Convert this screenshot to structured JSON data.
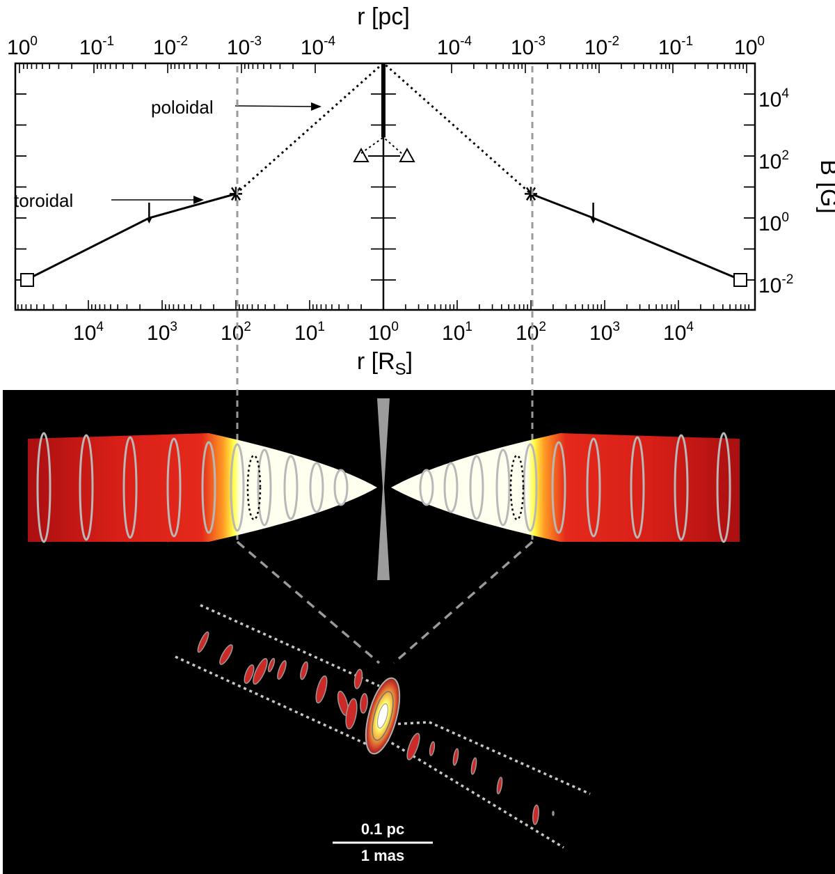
{
  "chart_data": {
    "type": "line",
    "title": "",
    "top_axis": {
      "label": "r [pc]",
      "ticks": [
        {
          "base": "10",
          "exp": "0"
        },
        {
          "base": "10",
          "exp": "-1"
        },
        {
          "base": "10",
          "exp": "-2"
        },
        {
          "base": "10",
          "exp": "-3"
        },
        {
          "base": "10",
          "exp": "-4"
        },
        {
          "base": "10",
          "exp": "-4"
        },
        {
          "base": "10",
          "exp": "-3"
        },
        {
          "base": "10",
          "exp": "-2"
        },
        {
          "base": "10",
          "exp": "-1"
        },
        {
          "base": "10",
          "exp": "0"
        }
      ]
    },
    "bottom_axis": {
      "label_main": "r [R",
      "label_sub": "S",
      "label_end": "]",
      "ticks": [
        {
          "base": "10",
          "exp": "4"
        },
        {
          "base": "10",
          "exp": "3"
        },
        {
          "base": "10",
          "exp": "2"
        },
        {
          "base": "10",
          "exp": "1"
        },
        {
          "base": "10",
          "exp": "0"
        },
        {
          "base": "10",
          "exp": "1"
        },
        {
          "base": "10",
          "exp": "2"
        },
        {
          "base": "10",
          "exp": "3"
        },
        {
          "base": "10",
          "exp": "4"
        }
      ]
    },
    "right_axis": {
      "label": "B [G]",
      "ticks": [
        {
          "base": "10",
          "exp": "4"
        },
        {
          "base": "10",
          "exp": "2"
        },
        {
          "base": "10",
          "exp": "0"
        },
        {
          "base": "10",
          "exp": "-2"
        }
      ]
    },
    "x_scale": "log (mirrored about r = 1 R_S)",
    "y_scale": "log",
    "series": [
      {
        "name": "poloidal",
        "style": "dotted",
        "x_rs": [
          100,
          1,
          100
        ],
        "side": [
          "left",
          "center",
          "right"
        ],
        "y_gauss": [
          6,
          100000,
          6
        ]
      },
      {
        "name": "toroidal",
        "style": "solid",
        "x_rs_left": [
          100,
          1500,
          70000
        ],
        "y_left": [
          6,
          1,
          0.01
        ],
        "x_rs_right": [
          100,
          700,
          70000
        ],
        "y_right": [
          6,
          1,
          0.01
        ]
      }
    ],
    "markers": [
      {
        "shape": "asterisk",
        "x_rs": 100,
        "y": 6,
        "side": "left"
      },
      {
        "shape": "asterisk",
        "x_rs": 100,
        "y": 6,
        "side": "right"
      },
      {
        "shape": "square",
        "x_rs": 70000,
        "y": 0.01,
        "side": "left"
      },
      {
        "shape": "square",
        "x_rs": 70000,
        "y": 0.01,
        "side": "right"
      },
      {
        "shape": "triangle",
        "x_rs": 2,
        "y": 100,
        "side": "left"
      },
      {
        "shape": "triangle",
        "x_rs": 2,
        "y": 100,
        "side": "right"
      },
      {
        "shape": "upper-limit",
        "x_rs": 1500,
        "y": 1,
        "side": "left"
      },
      {
        "shape": "upper-limit",
        "x_rs": 700,
        "y": 1,
        "side": "right"
      },
      {
        "shape": "range-bar",
        "x_rs": 1,
        "y_range": [
          400,
          100000
        ]
      }
    ],
    "annotations": [
      {
        "text": "poloidal"
      },
      {
        "text": "toroidal"
      }
    ],
    "scale_bar": {
      "top_label": "0.1 pc",
      "bottom_label": "1 mas"
    }
  },
  "colors": {
    "background_bottom": "#000000",
    "jet_dark": "#aa0f10",
    "jet_red": "#e0231a",
    "jet_yellow": "#ffff48",
    "jet_white": "#fffff0",
    "ring": "#b8b8b8",
    "guide": "#9a9a9a"
  }
}
